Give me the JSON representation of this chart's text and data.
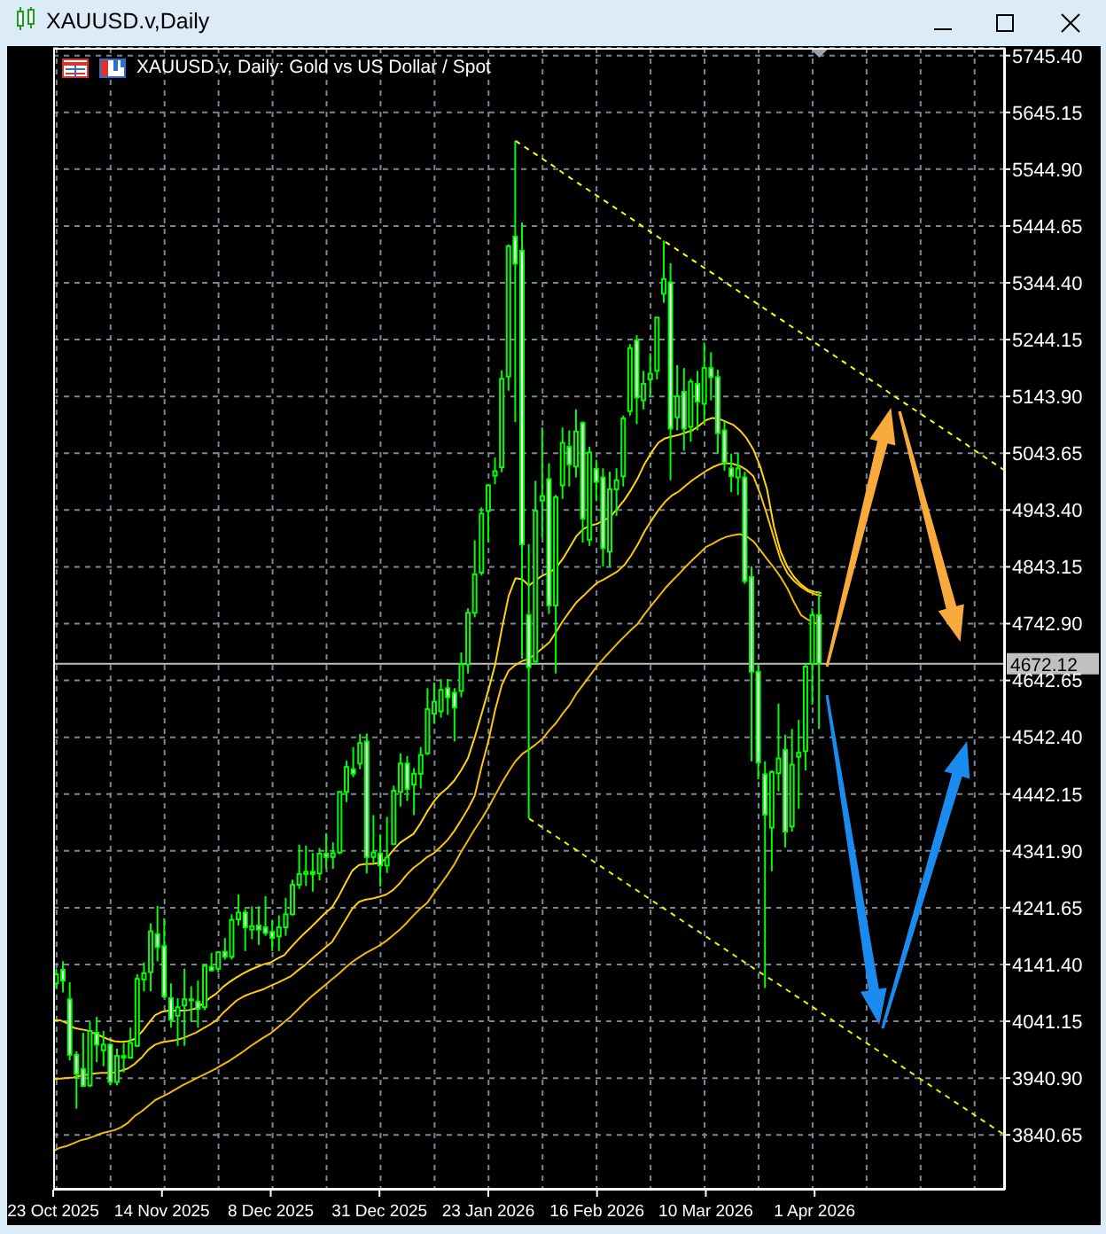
{
  "chart_data": {
    "type": "candlestick",
    "title": "XAUUSD.v,Daily",
    "subtitle": "XAUUSD.v, Daily: Gold vs US Dollar / Spot",
    "categories": [
      "23 Oct 2025",
      null,
      null,
      null,
      null,
      null,
      null,
      null,
      null,
      null,
      null,
      null,
      null,
      null,
      null,
      null,
      "14 Nov 2025",
      null,
      null,
      null,
      null,
      null,
      null,
      null,
      null,
      null,
      null,
      null,
      null,
      null,
      null,
      null,
      "8 Dec 2025",
      null,
      null,
      null,
      null,
      null,
      null,
      null,
      null,
      null,
      null,
      null,
      null,
      null,
      null,
      null,
      "31 Dec 2025",
      null,
      null,
      null,
      null,
      null,
      null,
      null,
      null,
      null,
      null,
      null,
      null,
      null,
      null,
      null,
      "23 Jan 2026",
      null,
      null,
      null,
      null,
      null,
      null,
      null,
      null,
      null,
      null,
      null,
      null,
      null,
      null,
      null,
      "16 Feb 2026",
      null,
      null,
      null,
      null,
      null,
      null,
      null,
      null,
      null,
      null,
      null,
      null,
      null,
      null,
      null,
      "10 Mar 2026",
      null,
      null,
      null,
      null,
      null,
      null,
      null,
      null,
      null,
      null,
      null,
      null,
      null,
      null,
      null,
      "1 Apr 2026",
      null,
      null,
      null,
      null,
      null,
      null,
      null,
      null,
      null,
      null,
      null,
      null,
      null,
      null,
      null,
      null,
      null,
      null,
      null,
      null,
      null,
      null,
      null,
      null,
      null,
      null,
      null,
      null
    ],
    "ohlc": [
      [
        4108,
        4134,
        4100,
        4124
      ],
      [
        4132,
        4147,
        4092,
        4113
      ],
      [
        4080,
        4110,
        3972,
        3982
      ],
      [
        3982,
        3988,
        3887,
        3948
      ],
      [
        3957,
        4021,
        3925,
        3927
      ],
      [
        3928,
        4040,
        3925,
        4024
      ],
      [
        4021,
        4049,
        3969,
        4000
      ],
      [
        3990,
        4024,
        3962,
        4000
      ],
      [
        4000,
        4002,
        3928,
        3934
      ],
      [
        3934,
        3993,
        3928,
        3980
      ],
      [
        3980,
        4003,
        3951,
        3977
      ],
      [
        3977,
        4030,
        3975,
        4003
      ],
      [
        3998,
        4124,
        3996,
        4116
      ],
      [
        4115,
        4145,
        4094,
        4126
      ],
      [
        4128,
        4214,
        4094,
        4200
      ],
      [
        4195,
        4245,
        4147,
        4172
      ],
      [
        4174,
        4223,
        4082,
        4085
      ],
      [
        4082,
        4108,
        4030,
        4044
      ],
      [
        4051,
        4082,
        3998,
        4066
      ],
      [
        4069,
        4134,
        3998,
        4080
      ],
      [
        4080,
        4103,
        4040,
        4078
      ],
      [
        4076,
        4113,
        4030,
        4063
      ],
      [
        4066,
        4141,
        4061,
        4139
      ],
      [
        4137,
        4162,
        4129,
        4131
      ],
      [
        4134,
        4165,
        4127,
        4163
      ],
      [
        4164,
        4188,
        4150,
        4155
      ],
      [
        4155,
        4230,
        4150,
        4220
      ],
      [
        4221,
        4265,
        4210,
        4233
      ],
      [
        4233,
        4239,
        4165,
        4207
      ],
      [
        4203,
        4244,
        4186,
        4209
      ],
      [
        4210,
        4244,
        4176,
        4203
      ],
      [
        4207,
        4262,
        4192,
        4197
      ],
      [
        4199,
        4220,
        4165,
        4188
      ],
      [
        4191,
        4228,
        4165,
        4207
      ],
      [
        4207,
        4259,
        4192,
        4230
      ],
      [
        4230,
        4291,
        4228,
        4282
      ],
      [
        4282,
        4353,
        4275,
        4301
      ],
      [
        4301,
        4351,
        4280,
        4305
      ],
      [
        4305,
        4338,
        4270,
        4301
      ],
      [
        4302,
        4347,
        4290,
        4337
      ],
      [
        4337,
        4373,
        4311,
        4331
      ],
      [
        4331,
        4357,
        4310,
        4338
      ],
      [
        4339,
        4447,
        4336,
        4446
      ],
      [
        4446,
        4501,
        4428,
        4490
      ],
      [
        4486,
        4525,
        4472,
        4478
      ],
      [
        4496,
        4548,
        4486,
        4532
      ],
      [
        4535,
        4549,
        4302,
        4331
      ],
      [
        4331,
        4405,
        4320,
        4339
      ],
      [
        4337,
        4371,
        4279,
        4316
      ],
      [
        4316,
        4402,
        4303,
        4330
      ],
      [
        4354,
        4457,
        4352,
        4448
      ],
      [
        4446,
        4514,
        4420,
        4496
      ],
      [
        4496,
        4509,
        4430,
        4451
      ],
      [
        4459,
        4488,
        4405,
        4478
      ],
      [
        4478,
        4525,
        4452,
        4511
      ],
      [
        4514,
        4629,
        4511,
        4592
      ],
      [
        4584,
        4639,
        4566,
        4605
      ],
      [
        4588,
        4645,
        4577,
        4626
      ],
      [
        4629,
        4645,
        4582,
        4613
      ],
      [
        4621,
        4629,
        4535,
        4595
      ],
      [
        4624,
        4692,
        4613,
        4671
      ],
      [
        4671,
        4770,
        4655,
        4762
      ],
      [
        4762,
        4890,
        4754,
        4830
      ],
      [
        4833,
        4948,
        4828,
        4937
      ],
      [
        4942,
        4989,
        4887,
        4987
      ],
      [
        5004,
        5036,
        4989,
        5012
      ],
      [
        5019,
        5190,
        5010,
        5175
      ],
      [
        5179,
        5412,
        5154,
        5409
      ],
      [
        5426,
        5595,
        5099,
        5378
      ],
      [
        5401,
        5451,
        4681,
        4883
      ],
      [
        4758,
        4883,
        4399,
        4666
      ],
      [
        4676,
        4995,
        4671,
        4942
      ],
      [
        4960,
        5089,
        4895,
        4968
      ],
      [
        4998,
        5026,
        4760,
        4775
      ],
      [
        4775,
        4970,
        4655,
        4966
      ],
      [
        4987,
        5089,
        4963,
        5062
      ],
      [
        5055,
        5084,
        4985,
        5024
      ],
      [
        5020,
        5121,
        5001,
        5082
      ],
      [
        5097,
        5100,
        4886,
        4928
      ],
      [
        4891,
        5055,
        4880,
        5045
      ],
      [
        5016,
        5032,
        4959,
        4993
      ],
      [
        5001,
        5017,
        4844,
        4876
      ],
      [
        4870,
        5011,
        4844,
        4980
      ],
      [
        4980,
        5017,
        4933,
        4996
      ],
      [
        5003,
        5110,
        4985,
        5105
      ],
      [
        5118,
        5236,
        5110,
        5229
      ],
      [
        5243,
        5252,
        5095,
        5142
      ],
      [
        5137,
        5189,
        5121,
        5166
      ],
      [
        5174,
        5220,
        5142,
        5184
      ],
      [
        5189,
        5283,
        5174,
        5283
      ],
      [
        5325,
        5419,
        5309,
        5351
      ],
      [
        5345,
        5379,
        4996,
        5087
      ],
      [
        5107,
        5199,
        5084,
        5144
      ],
      [
        5152,
        5194,
        5048,
        5087
      ],
      [
        5090,
        5175,
        5064,
        5170
      ],
      [
        5166,
        5189,
        5084,
        5135
      ],
      [
        5131,
        5239,
        5097,
        5194
      ],
      [
        5194,
        5222,
        5137,
        5178
      ],
      [
        5178,
        5191,
        5043,
        5079
      ],
      [
        5084,
        5100,
        5013,
        5027
      ],
      [
        5017,
        5043,
        4975,
        5003
      ],
      [
        5001,
        5043,
        4970,
        5017
      ],
      [
        5001,
        5011,
        4813,
        4818
      ],
      [
        4825,
        4844,
        4500,
        4658
      ],
      [
        4658,
        4672,
        4468,
        4498
      ],
      [
        4477,
        4500,
        4100,
        4406
      ],
      [
        4383,
        4484,
        4306,
        4481
      ],
      [
        4479,
        4602,
        4447,
        4505
      ],
      [
        4520,
        4547,
        4348,
        4376
      ],
      [
        4385,
        4557,
        4376,
        4494
      ],
      [
        4508,
        4573,
        4416,
        4515
      ],
      [
        4518,
        4672,
        4484,
        4667
      ],
      [
        4672,
        4770,
        4600,
        4758
      ],
      [
        4758,
        4800,
        4557,
        4672.12
      ],
      null,
      null,
      null,
      null,
      null,
      null,
      null,
      null,
      null,
      null,
      null,
      null,
      null,
      null,
      null,
      null,
      null,
      null,
      null,
      null,
      null,
      null,
      null,
      null,
      null,
      null,
      null
    ],
    "color": "#00ff00",
    "series": [
      {
        "type": "line",
        "color": "#ffd700",
        "values": [
          4043,
          4043,
          4038,
          4030,
          4027,
          4025,
          4020,
          4015,
          4010,
          4006,
          4005,
          4006,
          4010,
          4022,
          4037,
          4052,
          4058,
          4060,
          4060,
          4060,
          4061,
          4064,
          4072,
          4082,
          4090,
          4102,
          4111,
          4119,
          4126,
          4132,
          4137,
          4142,
          4145,
          4152,
          4158,
          4172,
          4185,
          4197,
          4208,
          4220,
          4232,
          4242,
          4262,
          4285,
          4307,
          4317,
          4319,
          4319,
          4321,
          4328,
          4343,
          4356,
          4364,
          4372,
          4390,
          4411,
          4429,
          4443,
          4453,
          4466,
          4484,
          4505,
          4542,
          4583,
          4625,
          4670,
          4734,
          4792,
          4823,
          4821,
          4810,
          4820,
          4828,
          4833,
          4842,
          4858,
          4878,
          4898,
          4910,
          4916,
          4919,
          4925,
          4932,
          4946,
          4961,
          4979,
          5000,
          5025,
          5045,
          5062,
          5070,
          5073,
          5076,
          5080,
          5084,
          5092,
          5102,
          5106,
          5104,
          5099,
          5094,
          5084,
          5070,
          5050,
          5020,
          4980,
          4915,
          4870,
          4843,
          4825,
          4812,
          4803,
          4799,
          4797,
          null,
          null,
          null,
          null,
          null,
          null,
          null,
          null,
          null,
          null,
          null,
          null,
          null,
          null,
          null,
          null,
          null,
          null,
          null,
          null,
          null,
          null,
          null,
          null,
          null,
          null,
          null
        ]
      },
      {
        "type": "line",
        "color": "#ffc800",
        "values": [
          3939,
          3940,
          3941,
          3942,
          3945,
          3947,
          3949,
          3950,
          3950,
          3951,
          3954,
          3958,
          3966,
          3977,
          3991,
          4000,
          4004,
          4006,
          4008,
          4011,
          4016,
          4021,
          4028,
          4035,
          4043,
          4056,
          4067,
          4078,
          4085,
          4090,
          4094,
          4098,
          4104,
          4109,
          4115,
          4121,
          4131,
          4140,
          4151,
          4161,
          4171,
          4181,
          4200,
          4220,
          4240,
          4252,
          4256,
          4258,
          4261,
          4265,
          4273,
          4285,
          4300,
          4312,
          4321,
          4331,
          4338,
          4349,
          4361,
          4377,
          4396,
          4416,
          4439,
          4490,
          4535,
          4590,
          4635,
          4660,
          4670,
          4677,
          4681,
          4690,
          4700,
          4710,
          4729,
          4748,
          4765,
          4781,
          4792,
          4804,
          4815,
          4821,
          4828,
          4835,
          4846,
          4863,
          4883,
          4906,
          4925,
          4943,
          4958,
          4969,
          4976,
          4986,
          4996,
          5004,
          5012,
          5019,
          5024,
          5026,
          5025,
          5021,
          5014,
          5003,
          4972,
          4935,
          4895,
          4856,
          4832,
          4818,
          4808,
          4800,
          4795,
          4792,
          null,
          null,
          null,
          null,
          null,
          null,
          null,
          null,
          null,
          null,
          null,
          null,
          null,
          null,
          null,
          null,
          null,
          null,
          null,
          null,
          null,
          null,
          null,
          null,
          null,
          null,
          null
        ]
      },
      {
        "type": "line",
        "color": "#f2bb00",
        "values": [
          3812,
          3818,
          3821,
          3826,
          3831,
          3834,
          3838,
          3843,
          3846,
          3849,
          3854,
          3862,
          3874,
          3882,
          3892,
          3902,
          3908,
          3914,
          3921,
          3928,
          3934,
          3940,
          3946,
          3952,
          3958,
          3965,
          3972,
          3980,
          3988,
          3997,
          4005,
          4013,
          4020,
          4030,
          4040,
          4050,
          4062,
          4074,
          4085,
          4095,
          4105,
          4115,
          4125,
          4136,
          4146,
          4154,
          4162,
          4168,
          4175,
          4183,
          4193,
          4203,
          4215,
          4228,
          4240,
          4250,
          4267,
          4283,
          4300,
          4318,
          4340,
          4360,
          4380,
          4398,
          4418,
          4440,
          4462,
          4482,
          4500,
          4513,
          4521,
          4530,
          4540,
          4555,
          4568,
          4585,
          4600,
          4620,
          4636,
          4652,
          4668,
          4682,
          4695,
          4708,
          4720,
          4732,
          4743,
          4760,
          4775,
          4790,
          4805,
          4818,
          4830,
          4843,
          4855,
          4866,
          4878,
          4884,
          4891,
          4896,
          4899,
          4901,
          4897,
          4888,
          4873,
          4857,
          4842,
          4825,
          4805,
          4780,
          4758,
          4750,
          4744,
          4741,
          null,
          null,
          null,
          null,
          null,
          null,
          null,
          null,
          null,
          null,
          null,
          null,
          null,
          null,
          null,
          null,
          null,
          null,
          null,
          null,
          null,
          null,
          null,
          null,
          null,
          null,
          null
        ]
      },
      {
        "type": "line",
        "color": "#ffff00",
        "line_style": "dashed",
        "values": [
          null,
          null,
          null,
          null,
          null,
          null,
          null,
          null,
          null,
          null,
          null,
          null,
          null,
          null,
          null,
          null,
          null,
          null,
          null,
          null,
          null,
          null,
          null,
          null,
          null,
          null,
          null,
          null,
          null,
          null,
          null,
          null,
          null,
          null,
          null,
          null,
          null,
          null,
          null,
          null,
          null,
          null,
          null,
          null,
          null,
          null,
          null,
          null,
          null,
          null,
          null,
          null,
          null,
          null,
          null,
          null,
          null,
          null,
          null,
          null,
          null,
          null,
          null,
          null,
          null,
          null,
          null,
          null,
          5595,
          5587,
          5579,
          5571,
          5563,
          5555,
          5547,
          5538,
          5530,
          5522,
          5514,
          5506,
          5498,
          5490,
          5482,
          5474,
          5466,
          5458,
          5450,
          5441,
          5433,
          5425,
          5417,
          5409,
          5401,
          5393,
          5385,
          5377,
          5369,
          5361,
          5353,
          5344,
          5336,
          5328,
          5320,
          5312,
          5304,
          5296,
          5288,
          5280,
          5272,
          5264,
          5256,
          5247,
          5239,
          5231,
          5223,
          5215,
          5207,
          5199,
          5191,
          5183,
          5175,
          5167,
          5159,
          5150,
          5142,
          5134,
          5126,
          5118,
          5110,
          5102,
          5094,
          5086,
          5078,
          5070,
          5062,
          5053,
          5045,
          5037,
          5029,
          5021,
          5013
        ]
      },
      {
        "type": "line",
        "color": "#eeee00",
        "line_style": "dashed",
        "values": [
          null,
          null,
          null,
          null,
          null,
          null,
          null,
          null,
          null,
          null,
          null,
          null,
          null,
          null,
          null,
          null,
          null,
          null,
          null,
          null,
          null,
          null,
          null,
          null,
          null,
          null,
          null,
          null,
          null,
          null,
          null,
          null,
          null,
          null,
          null,
          null,
          null,
          null,
          null,
          null,
          null,
          null,
          null,
          null,
          null,
          null,
          null,
          null,
          null,
          null,
          null,
          null,
          null,
          null,
          null,
          null,
          null,
          null,
          null,
          null,
          null,
          null,
          null,
          null,
          null,
          null,
          null,
          null,
          null,
          null,
          4399,
          4391,
          4383,
          4375,
          4367,
          4359,
          4351,
          4343,
          4335,
          4327,
          4319,
          4311,
          4303,
          4295,
          4287,
          4279,
          4271,
          4263,
          4255,
          4247,
          4239,
          4231,
          4223,
          4215,
          4207,
          4199,
          4191,
          4183,
          4175,
          4167,
          4159,
          4151,
          4143,
          4135,
          4127,
          4119,
          4112,
          4104,
          4096,
          4088,
          4080,
          4072,
          4064,
          4056,
          4048,
          4040,
          4032,
          4024,
          4016,
          4008,
          4000,
          3992,
          3984,
          3976,
          3968,
          3960,
          3952,
          3944,
          3936,
          3928,
          3920,
          3912,
          3904,
          3896,
          3888,
          3880,
          3872,
          3864,
          3856,
          3848,
          3840
        ]
      }
    ],
    "ylim": [
      3744,
      5759
    ],
    "yticks": [
      {
        "value": 5745.4,
        "label": "5745.40"
      },
      5645.15,
      {
        "value": 5544.9,
        "label": "5544.90"
      },
      5444.65,
      {
        "value": 5344.4,
        "label": "5344.40"
      },
      5244.15,
      {
        "value": 5143.9,
        "label": "5143.90"
      },
      5043.65,
      {
        "value": 4943.4,
        "label": "4943.40"
      },
      4843.15,
      {
        "value": 4742.9,
        "label": "4742.90"
      },
      4642.65,
      {
        "value": 4542.4,
        "label": "4542.40"
      },
      4442.15,
      {
        "value": 4341.9,
        "label": "4341.90"
      },
      4241.65,
      {
        "value": 4141.4,
        "label": "4141.40"
      },
      4041.15,
      {
        "value": 3940.9,
        "label": "3940.90"
      },
      3840.65
    ],
    "grid": true,
    "ref_lines": [
      {
        "axis": "y",
        "value": 4672.12,
        "label": "4672.12",
        "color": "#c0c0c0"
      }
    ]
  }
}
